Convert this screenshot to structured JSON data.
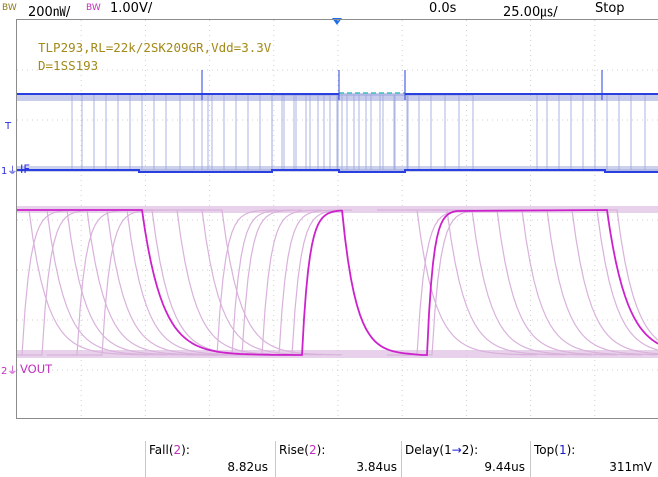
{
  "status_bar": {
    "ch1_bw": "BW",
    "ch1_scale": "200㎻/",
    "ch2_bw": "BW",
    "ch2_scale": "1.00V/",
    "time_offset": "0.0s",
    "timebase": "25.00㎲/",
    "run_state": "Stop"
  },
  "annotation": {
    "line1": "TLP293,RL=22k/2SK209GR,Vdd=3.3V",
    "line2": "D=1SS193"
  },
  "channels": {
    "if": {
      "number": "1",
      "label": "IF",
      "color": "#2c2ce0"
    },
    "vout": {
      "number": "2",
      "label": "VOUT",
      "color": "#c030c0"
    },
    "trigger_marker": "T"
  },
  "measurements": [
    {
      "label_prefix": "Fall(",
      "label_src": "2",
      "label_suffix": "):",
      "value": "8.82us"
    },
    {
      "label_prefix": "Rise(",
      "label_src": "2",
      "label_suffix": "):",
      "value": "3.84us"
    },
    {
      "label_prefix": "Delay(1",
      "label_src": "→",
      "label_suffix": "2):",
      "value": "9.44us"
    },
    {
      "label_prefix": "Top(",
      "label_src": "1",
      "label_suffix": "):",
      "value": "311mV"
    }
  ],
  "colors": {
    "ch1_trace": "#2a3fe0",
    "ch1_persist": "#9aa4dc",
    "ch2_trace": "#cc22cc",
    "ch2_persist": "#d9b2dc",
    "trigger_level": "#18b4b4",
    "grid": "#d0d0d0",
    "annotation": "#a38a1a"
  }
}
